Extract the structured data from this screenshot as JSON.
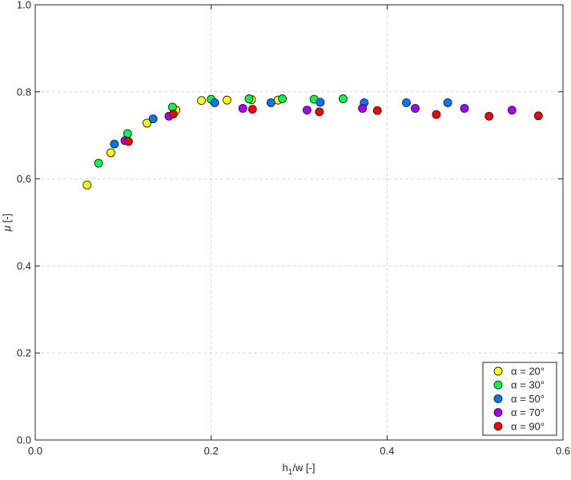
{
  "chart_data": {
    "type": "scatter",
    "title": "",
    "xlabel_main": "h",
    "xlabel_sub": "1",
    "xlabel_rest": "/w [-]",
    "ylabel_symbol": "μ",
    "ylabel_rest": " [-]",
    "xlim": [
      0,
      0.6
    ],
    "ylim": [
      0,
      1.0
    ],
    "x_ticks": [
      0,
      0.2,
      0.4,
      0.6
    ],
    "x_tick_labels": [
      "0.0",
      "0.2",
      "0.4",
      "0.6"
    ],
    "y_ticks": [
      0,
      0.2,
      0.4,
      0.6,
      0.8,
      1.0
    ],
    "y_tick_labels": [
      "0.0",
      "0.2",
      "0.4",
      "0.6",
      "0.8",
      "1.0"
    ],
    "grid": true,
    "legend_placement": "bottom-right",
    "series": [
      {
        "name": "α = 20°",
        "color": "#ffff00",
        "points": [
          [
            0.059,
            0.586
          ],
          [
            0.086,
            0.66
          ],
          [
            0.127,
            0.728
          ],
          [
            0.16,
            0.758
          ],
          [
            0.189,
            0.78
          ],
          [
            0.218,
            0.781
          ],
          [
            0.246,
            0.782
          ],
          [
            0.276,
            0.781
          ]
        ]
      },
      {
        "name": "α = 30°",
        "color": "#00ff44",
        "points": [
          [
            0.072,
            0.636
          ],
          [
            0.105,
            0.704
          ],
          [
            0.156,
            0.765
          ],
          [
            0.2,
            0.783
          ],
          [
            0.243,
            0.784
          ],
          [
            0.281,
            0.784
          ],
          [
            0.317,
            0.783
          ],
          [
            0.35,
            0.784
          ]
        ]
      },
      {
        "name": "α = 50°",
        "color": "#0077ff",
        "points": [
          [
            0.09,
            0.68
          ],
          [
            0.134,
            0.738
          ],
          [
            0.204,
            0.775
          ],
          [
            0.268,
            0.775
          ],
          [
            0.324,
            0.776
          ],
          [
            0.374,
            0.775
          ],
          [
            0.422,
            0.775
          ],
          [
            0.469,
            0.775
          ]
        ]
      },
      {
        "name": "α = 70°",
        "color": "#aa00ff",
        "points": [
          [
            0.102,
            0.688
          ],
          [
            0.152,
            0.744
          ],
          [
            0.236,
            0.762
          ],
          [
            0.309,
            0.758
          ],
          [
            0.372,
            0.762
          ],
          [
            0.432,
            0.762
          ],
          [
            0.488,
            0.762
          ],
          [
            0.542,
            0.758
          ]
        ]
      },
      {
        "name": "α = 90°",
        "color": "#ff0000",
        "points": [
          [
            0.106,
            0.686
          ],
          [
            0.157,
            0.749
          ],
          [
            0.247,
            0.76
          ],
          [
            0.323,
            0.754
          ],
          [
            0.389,
            0.757
          ],
          [
            0.456,
            0.748
          ],
          [
            0.516,
            0.744
          ],
          [
            0.572,
            0.745
          ]
        ]
      }
    ]
  }
}
